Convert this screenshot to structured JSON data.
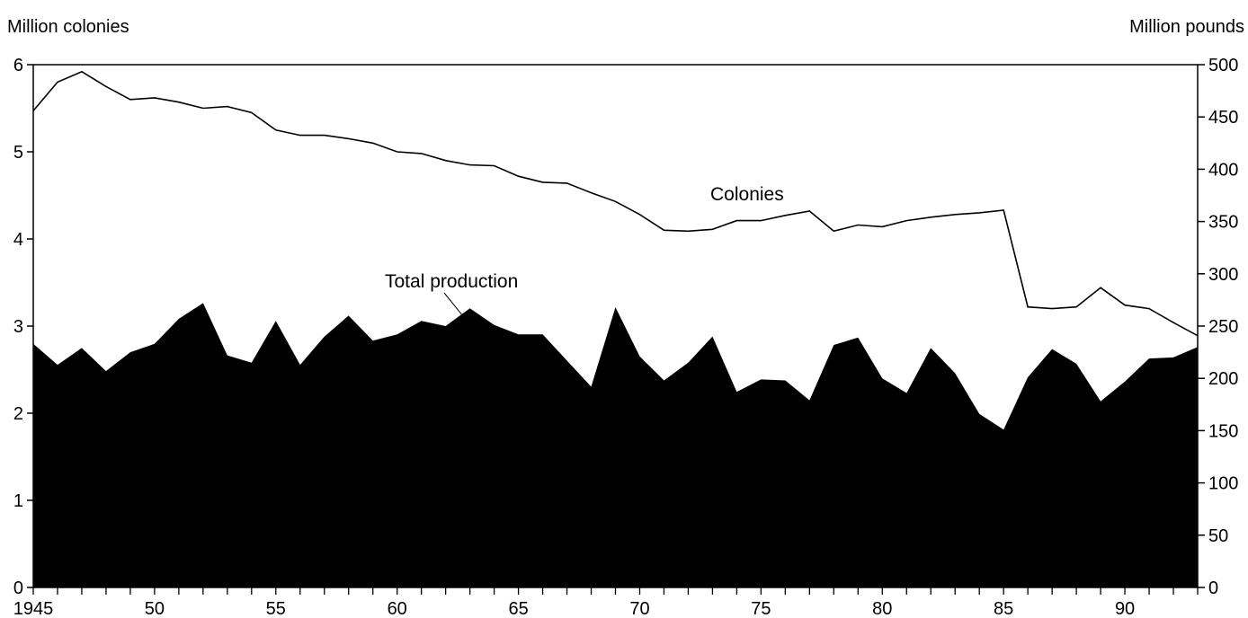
{
  "chart_data": {
    "type": "area",
    "title": "",
    "ylabel_left": "Million colonies",
    "ylabel_right": "Million pounds",
    "x": [
      1945,
      1946,
      1947,
      1948,
      1949,
      1950,
      1951,
      1952,
      1953,
      1954,
      1955,
      1956,
      1957,
      1958,
      1959,
      1960,
      1961,
      1962,
      1963,
      1964,
      1965,
      1966,
      1967,
      1968,
      1969,
      1970,
      1971,
      1972,
      1973,
      1974,
      1975,
      1976,
      1977,
      1978,
      1979,
      1980,
      1981,
      1982,
      1983,
      1984,
      1985,
      1986,
      1987,
      1988,
      1989,
      1990,
      1991,
      1992,
      1993
    ],
    "xlim": [
      1945,
      1993
    ],
    "x_tick_values": [
      1945,
      1950,
      1955,
      1960,
      1965,
      1970,
      1975,
      1980,
      1985,
      1990
    ],
    "x_tick_labels": [
      "1945",
      "50",
      "55",
      "60",
      "65",
      "70",
      "75",
      "80",
      "85",
      "90"
    ],
    "left_axis": {
      "range": [
        0,
        6
      ],
      "ticks": [
        0,
        1,
        2,
        3,
        4,
        5,
        6
      ]
    },
    "right_axis": {
      "range": [
        0,
        500
      ],
      "ticks": [
        0,
        50,
        100,
        150,
        200,
        250,
        300,
        350,
        400,
        450,
        500
      ]
    },
    "series": [
      {
        "name": "Colonies",
        "axis": "left",
        "style": "line",
        "values": [
          5.47,
          5.8,
          5.92,
          5.75,
          5.6,
          5.62,
          5.57,
          5.5,
          5.52,
          5.45,
          5.25,
          5.19,
          5.19,
          5.15,
          5.1,
          5.0,
          4.98,
          4.9,
          4.85,
          4.84,
          4.72,
          4.65,
          4.64,
          4.53,
          4.43,
          4.28,
          4.1,
          4.09,
          4.11,
          4.21,
          4.21,
          4.27,
          4.32,
          4.09,
          4.16,
          4.14,
          4.21,
          4.25,
          4.28,
          4.3,
          4.33,
          3.22,
          3.2,
          3.22,
          3.44,
          3.24,
          3.2,
          3.04,
          2.89
        ]
      },
      {
        "name": "Total production",
        "axis": "right",
        "style": "filled-area",
        "values": [
          233,
          213,
          229,
          207,
          225,
          233,
          257,
          272,
          222,
          215,
          255,
          213,
          240,
          260,
          236,
          242,
          255,
          250,
          267,
          251,
          242,
          242,
          217,
          192,
          268,
          221,
          198,
          215,
          240,
          187,
          199,
          198,
          179,
          232,
          239,
          200,
          186,
          229,
          205,
          166,
          151,
          201,
          228,
          214,
          178,
          197,
          219,
          220,
          230
        ]
      }
    ],
    "annotations": [
      {
        "text": "Colonies",
        "series": "Colonies"
      },
      {
        "text": "Total production",
        "series": "Total production"
      }
    ],
    "colors": {
      "area_fill": "#000000",
      "line": "#000000",
      "background": "#ffffff"
    },
    "grid": false,
    "legend": "none"
  }
}
